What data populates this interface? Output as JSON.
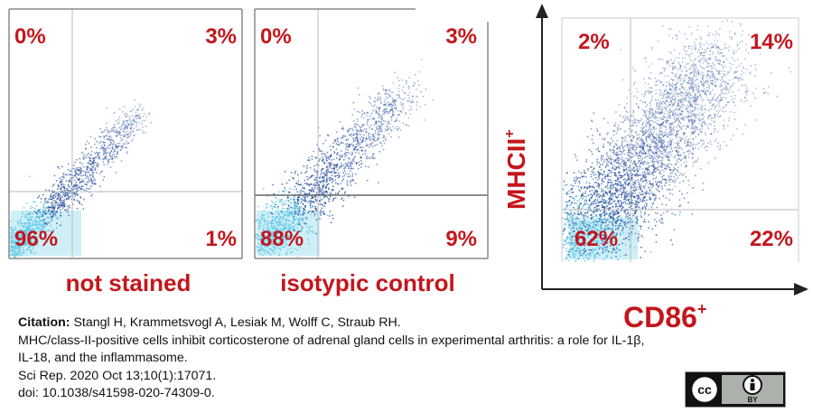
{
  "chart_data": [
    {
      "type": "scatter",
      "xlabel": "not stained",
      "quadrants": {
        "upper_left": "0%",
        "upper_right": "3%",
        "lower_left": "96%",
        "lower_right": "1%"
      }
    },
    {
      "type": "scatter",
      "xlabel": "isotypic control",
      "quadrants": {
        "upper_left": "0%",
        "upper_right": "3%",
        "lower_left": "88%",
        "lower_right": "9%"
      }
    },
    {
      "type": "scatter",
      "xlabel": "CD86",
      "xlabel_superscript": "+",
      "ylabel": "MHCII",
      "ylabel_superscript": "+",
      "quadrants": {
        "upper_left": "2%",
        "upper_right": "14%",
        "lower_left": "62%",
        "lower_right": "22%"
      }
    }
  ],
  "colors": {
    "label_red": "#c4161c",
    "dot_blue": "#2a4f9e",
    "dot_cyan": "#5ec8e8",
    "quadrant_highlight": "#cfeff7"
  },
  "citation": {
    "label": "Citation:",
    "authors": " Stangl H, Krammetsvogl A, Lesiak M, Wolff C, Straub RH.",
    "title_line1": "MHC/class-II-positive cells inhibit corticosterone of adrenal gland cells in experimental arthritis: a role for IL-1β,",
    "title_line2": "IL-18, and the inflammasome.",
    "journal": "Sci Rep. 2020 Oct 13;10(1):17071.",
    "doi": "doi: 10.1038/s41598-020-74309-0."
  },
  "license": {
    "badge_text": "BY",
    "icons": [
      "cc-icon",
      "attribution-icon"
    ]
  }
}
